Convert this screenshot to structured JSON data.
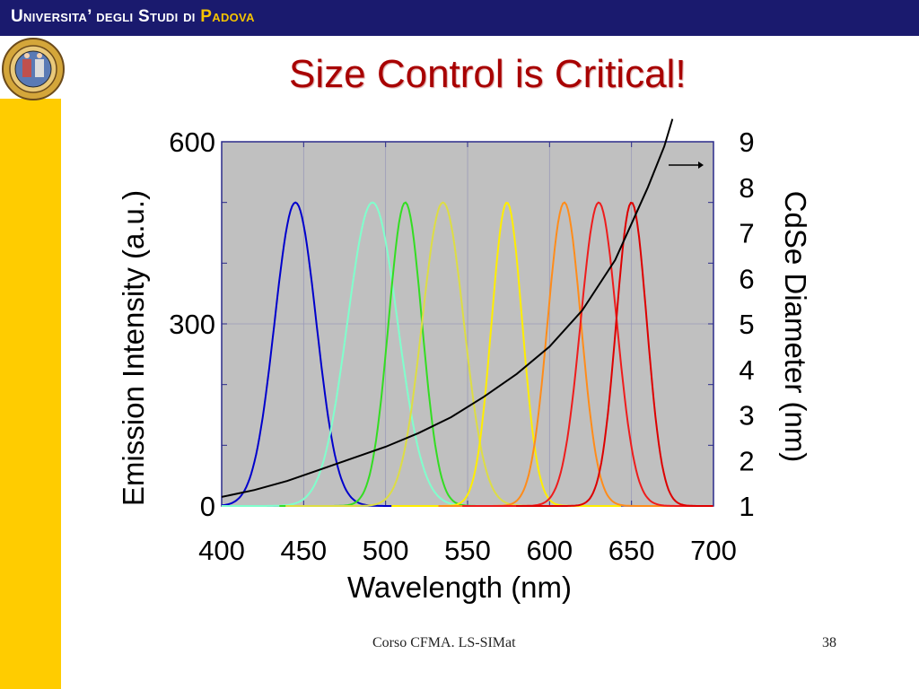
{
  "header": {
    "university_part1": "Universita’ degli Studi di",
    "university_part2": "Padova",
    "seal_icon": "university-seal-icon"
  },
  "slide": {
    "title": "Size Control is Critical!"
  },
  "footer": {
    "course": "Corso CFMA. LS-SIMat",
    "page_number": "38"
  },
  "colors": {
    "topbar": "#1a1a6e",
    "sidebar": "#ffcc00",
    "title": "#a80000",
    "plot_bg": "#c0c0c0"
  },
  "chart_data": {
    "type": "line",
    "xlabel": "Wavelength (nm)",
    "ylabel": "Emission Intensity (a.u.)",
    "y2label": "CdSe Diameter  (nm)",
    "xlim": [
      400,
      700
    ],
    "ylim": [
      0,
      600
    ],
    "y2lim": [
      1,
      9
    ],
    "x_ticks": [
      "400",
      "450",
      "500",
      "550",
      "600",
      "650",
      "700"
    ],
    "y_ticks": [
      "0",
      "300",
      "600"
    ],
    "y2_ticks": [
      "1",
      "2",
      "3",
      "4",
      "5",
      "6",
      "7",
      "8",
      "9"
    ],
    "grid": true,
    "arrow_annotation": "right-pointing arrow at top-right, linking the black curve to the diameter axis",
    "emission_peaks": [
      {
        "color": "#0000cc",
        "peak_nm": 445,
        "peak_intensity": 500,
        "fwhm_nm": 30
      },
      {
        "color": "#80ffcc",
        "peak_nm": 492,
        "peak_intensity": 500,
        "fwhm_nm": 36
      },
      {
        "color": "#33dd22",
        "peak_nm": 512,
        "peak_intensity": 500,
        "fwhm_nm": 24
      },
      {
        "color": "#dddd44",
        "peak_nm": 535,
        "peak_intensity": 500,
        "fwhm_nm": 30
      },
      {
        "color": "#ffee00",
        "peak_nm": 574,
        "peak_intensity": 500,
        "fwhm_nm": 22
      },
      {
        "color": "#ff8c1a",
        "peak_nm": 609,
        "peak_intensity": 500,
        "fwhm_nm": 24
      },
      {
        "color": "#ee1c1c",
        "peak_nm": 630,
        "peak_intensity": 500,
        "fwhm_nm": 26
      },
      {
        "color": "#dd0000",
        "peak_nm": 650,
        "peak_intensity": 500,
        "fwhm_nm": 22
      }
    ],
    "diameter_curve": {
      "color": "#000000",
      "x": [
        400,
        420,
        440,
        460,
        480,
        500,
        520,
        540,
        560,
        580,
        600,
        620,
        640,
        650,
        660,
        670,
        675
      ],
      "diameter_nm": [
        1.2,
        1.35,
        1.55,
        1.8,
        2.05,
        2.3,
        2.6,
        2.95,
        3.4,
        3.9,
        4.5,
        5.3,
        6.4,
        7.2,
        8.0,
        8.9,
        9.5
      ]
    }
  }
}
